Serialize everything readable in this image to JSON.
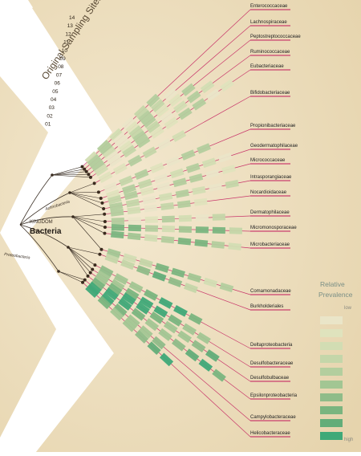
{
  "colors": {
    "parchment": "#efe3c6",
    "parchment_dark": "#e6d6b0",
    "branch": "#c2185b",
    "tree": "#3a2f25",
    "node": "#3a2b1e",
    "high": "#3fa978",
    "low": "#eae5c8"
  },
  "tree": {
    "kingdom_label": "KINGDOM",
    "root": "Bacteria",
    "sub_clade": "Actinobacteria",
    "sub_clade_2": "Proteobacteria"
  },
  "sampling": {
    "title": "Original Sampling Sites",
    "sites": [
      "14",
      "13",
      "12",
      "11",
      "10",
      "09",
      "08",
      "07",
      "06",
      "05",
      "04",
      "03",
      "02",
      "01"
    ]
  },
  "families": [
    {
      "name": "Enterococcaceae"
    },
    {
      "name": "Lachnospiraceae"
    },
    {
      "name": "Peptostreptococcaceae"
    },
    {
      "name": "Ruminococcaceae"
    },
    {
      "name": "Eubacteriaceae"
    },
    {
      "name": "Bifidobacteriaceae"
    },
    {
      "name": "Propionibacteriaceae"
    },
    {
      "name": "Geodermatophilaceae"
    },
    {
      "name": "Micrococcaceae"
    },
    {
      "name": "Intrasporangiaceae"
    },
    {
      "name": "Nocardioidaceae"
    },
    {
      "name": "Dermatophilaceae"
    },
    {
      "name": "Micromonosporaceae"
    },
    {
      "name": "Microbacteriaceae"
    },
    {
      "name": "Comamonadaceae"
    },
    {
      "name": "Burkholderiales"
    },
    {
      "name": "Deltaproteobacteria"
    },
    {
      "name": "Desulfobacteraceae"
    },
    {
      "name": "Desulfobulbaceae"
    },
    {
      "name": "Epsilonproteobacteria"
    },
    {
      "name": "Campylobacteraceae"
    },
    {
      "name": "Helicobacteraceae"
    }
  ],
  "legend": {
    "title_1": "Relative",
    "title_2": "Prevalence",
    "low": "low",
    "high": "high",
    "steps": [
      "#eae5c8",
      "#dfe3bd",
      "#d2ddb3",
      "#c4d6a9",
      "#b3ce9e",
      "#a2c693",
      "#8fbc89",
      "#7ab57f",
      "#62ad79",
      "#3fa978"
    ]
  }
}
